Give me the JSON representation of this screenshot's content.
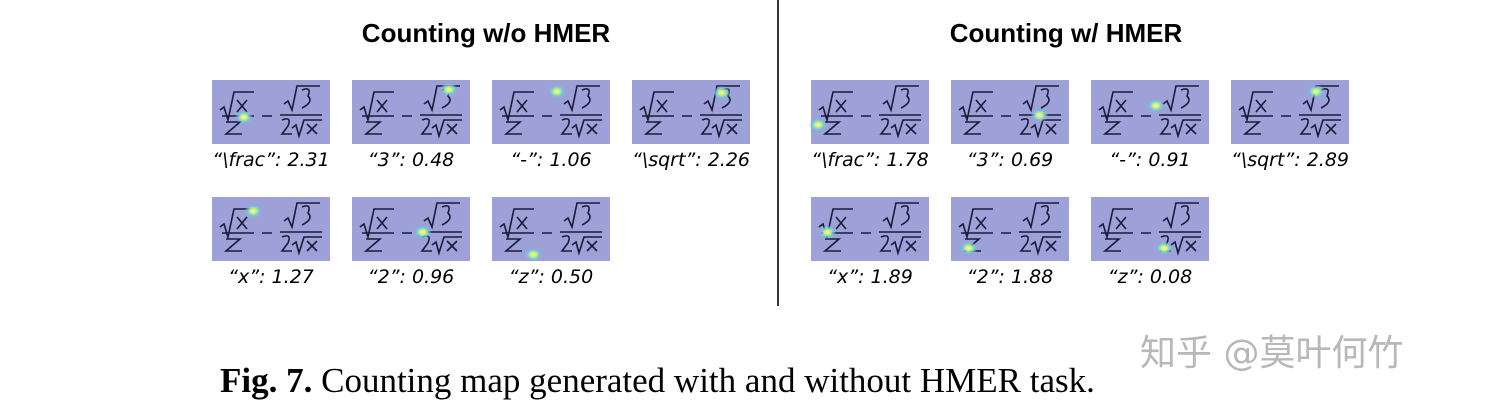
{
  "panels": [
    {
      "title": "Counting w/o HMER",
      "items": [
        {
          "label": "“\\frac”: 2.31"
        },
        {
          "label": "“3”: 0.48"
        },
        {
          "label": "“-”: 1.06"
        },
        {
          "label": "“\\sqrt”: 2.26"
        },
        {
          "label": "“x”: 1.27"
        },
        {
          "label": "“2”: 0.96"
        },
        {
          "label": "“z”: 0.50"
        }
      ]
    },
    {
      "title": "Counting w/ HMER",
      "items": [
        {
          "label": "“\\frac”: 1.78"
        },
        {
          "label": "“3”: 0.69"
        },
        {
          "label": "“-”: 0.91"
        },
        {
          "label": "“\\sqrt”: 2.89"
        },
        {
          "label": "“x”: 1.89"
        },
        {
          "label": "“2”: 1.88"
        },
        {
          "label": "“z”: 0.08"
        }
      ]
    }
  ],
  "caption": {
    "label": "Fig. 7.",
    "text": "Counting map generated with and without HMER task."
  },
  "watermark": "知乎 @莫叶何竹"
}
